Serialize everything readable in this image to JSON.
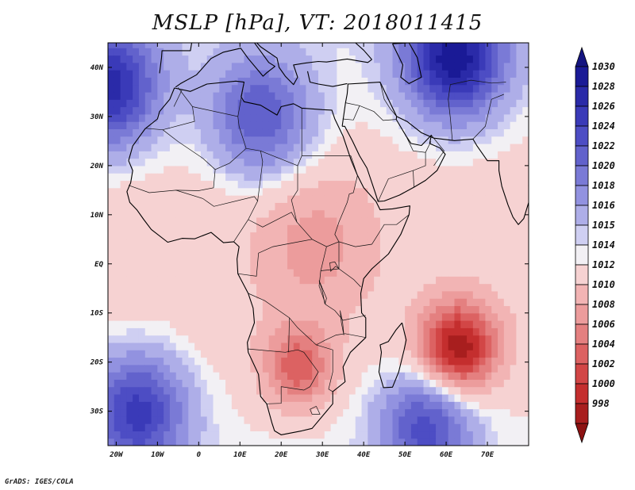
{
  "title": "MSLP [hPa], VT: 2018011415",
  "footer": "GrADS: IGES/COLA",
  "map": {
    "projection": "latlon",
    "lon_range": [
      -22,
      80
    ],
    "lat_range": [
      -37,
      45
    ],
    "x_ticks": [
      {
        "value": -20,
        "label": "20W"
      },
      {
        "value": -10,
        "label": "10W"
      },
      {
        "value": 0,
        "label": "0"
      },
      {
        "value": 10,
        "label": "10E"
      },
      {
        "value": 20,
        "label": "20E"
      },
      {
        "value": 30,
        "label": "30E"
      },
      {
        "value": 40,
        "label": "40E"
      },
      {
        "value": 50,
        "label": "50E"
      },
      {
        "value": 60,
        "label": "60E"
      },
      {
        "value": 70,
        "label": "70E"
      }
    ],
    "y_ticks": [
      {
        "value": 40,
        "label": "40N"
      },
      {
        "value": 30,
        "label": "30N"
      },
      {
        "value": 20,
        "label": "20N"
      },
      {
        "value": 10,
        "label": "10N"
      },
      {
        "value": 0,
        "label": "EQ"
      },
      {
        "value": -10,
        "label": "10S"
      },
      {
        "value": -20,
        "label": "20S"
      },
      {
        "value": -30,
        "label": "30S"
      }
    ],
    "pressure_features": [
      {
        "type": "low",
        "lon": 63,
        "lat": -17,
        "value": 998,
        "spread": 9
      },
      {
        "type": "low",
        "lon": 24,
        "lat": -21,
        "value": 1004,
        "spread": 8
      },
      {
        "type": "low",
        "lon": 28,
        "lat": 4,
        "value": 1009,
        "spread": 14
      },
      {
        "type": "high",
        "lon": -15,
        "lat": -30,
        "value": 1026,
        "spread": 12
      },
      {
        "type": "high",
        "lon": 55,
        "lat": -33,
        "value": 1024,
        "spread": 11
      },
      {
        "type": "high",
        "lon": -22,
        "lat": 36,
        "value": 1028,
        "spread": 12
      },
      {
        "type": "high",
        "lon": 15,
        "lat": 30,
        "value": 1023,
        "spread": 12
      },
      {
        "type": "high",
        "lon": 62,
        "lat": 42,
        "value": 1030,
        "spread": 12
      }
    ]
  },
  "colorbar": {
    "levels": [
      {
        "label": "1030",
        "color": "#1a1a96"
      },
      {
        "label": "1028",
        "color": "#2a2aa8"
      },
      {
        "label": "1026",
        "color": "#3a3ab8"
      },
      {
        "label": "1024",
        "color": "#4d4dc4"
      },
      {
        "label": "1022",
        "color": "#6262cc"
      },
      {
        "label": "1020",
        "color": "#7a7ad6"
      },
      {
        "label": "1018",
        "color": "#9292e0"
      },
      {
        "label": "1016",
        "color": "#aeaee8"
      },
      {
        "label": "1015",
        "color": "#cfcff2"
      },
      {
        "label": "1014",
        "color": "#f2f0f4"
      },
      {
        "label": "1012",
        "color": "#f6d2d2"
      },
      {
        "label": "1010",
        "color": "#f2b4b4"
      },
      {
        "label": "1008",
        "color": "#ec9c9c"
      },
      {
        "label": "1006",
        "color": "#e48080"
      },
      {
        "label": "1004",
        "color": "#dc6262"
      },
      {
        "label": "1002",
        "color": "#d24646"
      },
      {
        "label": "1000",
        "color": "#c42e2e"
      },
      {
        "label": "998",
        "color": "#a81e1e"
      }
    ],
    "top_arrow_color": "#141480",
    "bottom_arrow_color": "#8c1212"
  }
}
